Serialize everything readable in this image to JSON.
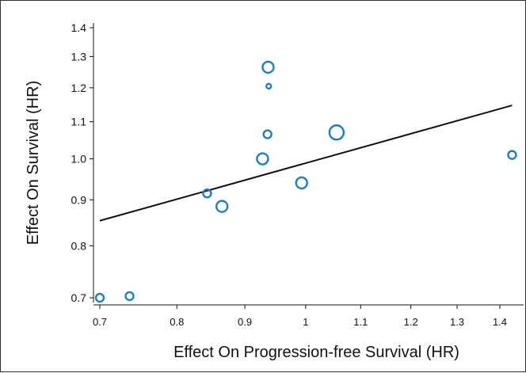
{
  "chart_data": {
    "type": "scatter",
    "title": "",
    "xlabel": "Effect On Progression-free Survival (HR)",
    "ylabel": "Effect On Survival (HR)",
    "xscale": "log",
    "yscale": "log",
    "xlim": [
      0.7,
      1.45
    ],
    "ylim": [
      0.69,
      1.43
    ],
    "xticks": [
      0.7,
      0.8,
      0.9,
      1,
      1.1,
      1.2,
      1.3,
      1.4
    ],
    "xtick_labels": [
      "0.7",
      "0.8",
      "0.9",
      "1",
      "1.1",
      "1.2",
      "1.3",
      "1.4"
    ],
    "yticks": [
      0.7,
      0.8,
      0.9,
      1.0,
      1.1,
      1.2,
      1.3,
      1.4
    ],
    "ytick_labels": [
      "0.7",
      "0.8",
      "0.9",
      "1.0",
      "1.1",
      "1.2",
      "1.3",
      "1.4"
    ],
    "grid": false,
    "legend": "none",
    "marker_color": "#1a7fc0",
    "line_color": "#111111",
    "points": [
      {
        "x": 0.7,
        "y": 0.7,
        "size": "small"
      },
      {
        "x": 0.737,
        "y": 0.703,
        "size": "small"
      },
      {
        "x": 0.843,
        "y": 0.915,
        "size": "small"
      },
      {
        "x": 0.865,
        "y": 0.885,
        "size": "medium"
      },
      {
        "x": 0.928,
        "y": 1.0,
        "size": "medium"
      },
      {
        "x": 0.936,
        "y": 1.065,
        "size": "small"
      },
      {
        "x": 0.937,
        "y": 1.265,
        "size": "medium"
      },
      {
        "x": 0.938,
        "y": 1.205,
        "size": "tiny"
      },
      {
        "x": 0.993,
        "y": 0.94,
        "size": "medium"
      },
      {
        "x": 1.055,
        "y": 1.07,
        "size": "large"
      },
      {
        "x": 1.43,
        "y": 1.01,
        "size": "small"
      }
    ],
    "regression_line": {
      "x": [
        0.7,
        1.43
      ],
      "y": [
        0.853,
        1.147
      ]
    }
  }
}
